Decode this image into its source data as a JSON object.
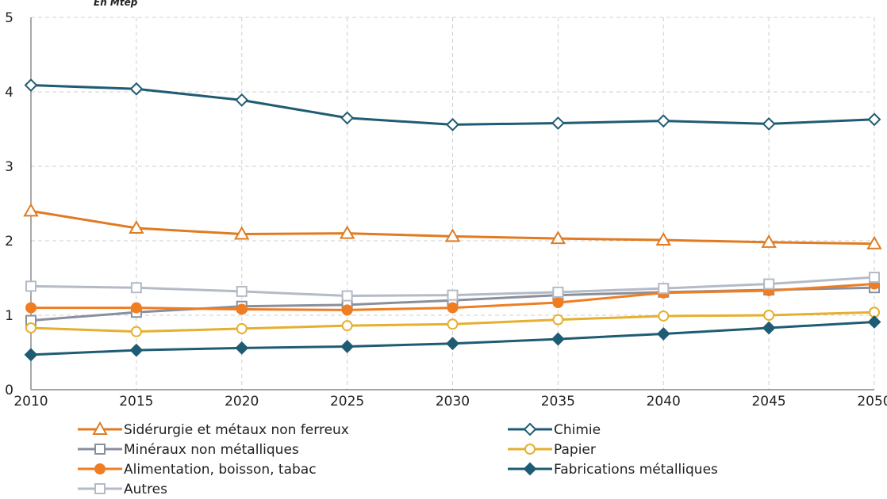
{
  "chart_data": {
    "type": "line",
    "unit_label": "En Mtep",
    "x": [
      2010,
      2015,
      2020,
      2025,
      2030,
      2035,
      2040,
      2045,
      2050
    ],
    "xlim": [
      2010,
      2050
    ],
    "ylim": [
      0,
      5
    ],
    "y_ticks": [
      0,
      1,
      2,
      3,
      4,
      5
    ],
    "grid": true,
    "legend_position": "bottom",
    "series": [
      {
        "name": "Sidérurgie et métaux non ferreux",
        "color": "#E07B22",
        "marker": "triangle-open",
        "values": [
          2.4,
          2.17,
          2.09,
          2.1,
          2.06,
          2.03,
          2.01,
          1.98,
          1.96
        ]
      },
      {
        "name": "Chimie",
        "color": "#1F5C73",
        "marker": "diamond-open",
        "values": [
          4.09,
          4.04,
          3.89,
          3.65,
          3.56,
          3.58,
          3.61,
          3.57,
          3.63
        ]
      },
      {
        "name": "Minéraux non métalliques",
        "color": "#8A8F9C",
        "marker": "square-open",
        "values": [
          0.93,
          1.04,
          1.12,
          1.14,
          1.2,
          1.27,
          1.31,
          1.34,
          1.37
        ]
      },
      {
        "name": "Papier",
        "color": "#E5B02F",
        "marker": "circle-open",
        "values": [
          0.83,
          0.78,
          0.82,
          0.86,
          0.88,
          0.94,
          0.99,
          1.0,
          1.04
        ]
      },
      {
        "name": "Alimentation, boisson, tabac",
        "color": "#EF7D22",
        "marker": "circle-filled",
        "values": [
          1.1,
          1.1,
          1.08,
          1.07,
          1.1,
          1.17,
          1.3,
          1.33,
          1.42
        ]
      },
      {
        "name": "Fabrications métalliques",
        "color": "#1F5C73",
        "marker": "diamond-filled",
        "values": [
          0.47,
          0.53,
          0.56,
          0.58,
          0.62,
          0.68,
          0.75,
          0.83,
          0.91
        ]
      },
      {
        "name": "Autres",
        "color": "#B4BAC6",
        "marker": "square-open",
        "values": [
          1.39,
          1.37,
          1.32,
          1.26,
          1.27,
          1.31,
          1.36,
          1.42,
          1.51
        ]
      }
    ]
  }
}
